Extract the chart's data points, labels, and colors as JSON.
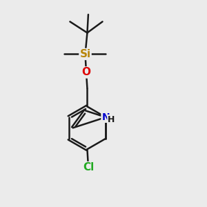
{
  "background_color": "#ebebeb",
  "bond_color": "#1a1a1a",
  "bond_width": 1.8,
  "atom_colors": {
    "Si": "#b8860b",
    "O": "#dd0000",
    "N": "#0000cc",
    "Cl": "#22aa22",
    "H": "#1a1a1a",
    "C": "#1a1a1a"
  },
  "font_size_atoms": 11,
  "font_size_H": 9
}
